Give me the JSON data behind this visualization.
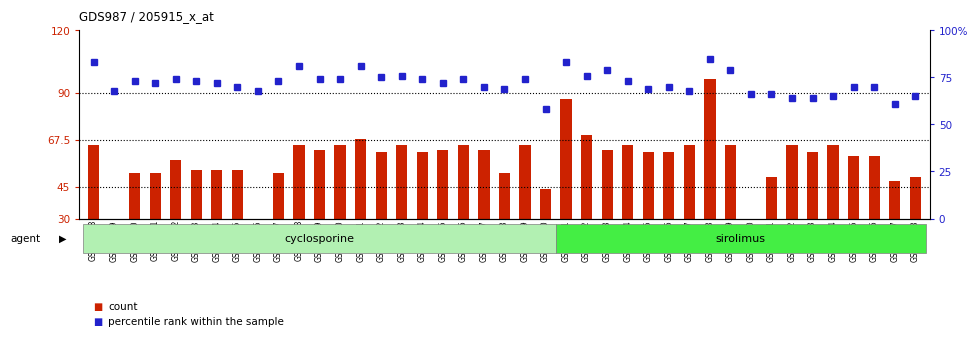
{
  "title": "GDS987 / 205915_x_at",
  "samples": [
    "GSM30418",
    "GSM30419",
    "GSM30420",
    "GSM30421",
    "GSM30422",
    "GSM30423",
    "GSM30424",
    "GSM30425",
    "GSM30426",
    "GSM30427",
    "GSM30428",
    "GSM30429",
    "GSM30430",
    "GSM30431",
    "GSM30432",
    "GSM30433",
    "GSM30434",
    "GSM30435",
    "GSM30436",
    "GSM30437",
    "GSM30438",
    "GSM30439",
    "GSM30440",
    "GSM30441",
    "GSM30442",
    "GSM30443",
    "GSM30444",
    "GSM30445",
    "GSM30446",
    "GSM30447",
    "GSM30448",
    "GSM30449",
    "GSM30450",
    "GSM30451",
    "GSM30452",
    "GSM30453",
    "GSM30454",
    "GSM30455",
    "GSM30456",
    "GSM30457",
    "GSM30458"
  ],
  "counts": [
    65,
    30,
    52,
    52,
    58,
    53,
    53,
    53,
    30,
    52,
    65,
    63,
    65,
    68,
    62,
    65,
    62,
    63,
    65,
    63,
    52,
    65,
    44,
    87,
    70,
    63,
    65,
    62,
    62,
    65,
    97,
    65,
    30,
    50,
    65,
    62,
    65,
    60,
    60,
    48,
    50
  ],
  "percentile": [
    83,
    68,
    73,
    72,
    74,
    73,
    72,
    70,
    68,
    73,
    81,
    74,
    74,
    81,
    75,
    76,
    74,
    72,
    74,
    70,
    69,
    74,
    58,
    83,
    76,
    79,
    73,
    69,
    70,
    68,
    85,
    79,
    66,
    66,
    64,
    64,
    65,
    70,
    70,
    61,
    65
  ],
  "cyclosporine_count": 23,
  "bar_color": "#cc2200",
  "dot_color": "#2222cc",
  "ylim_left": [
    30,
    120
  ],
  "ylim_right": [
    0,
    100
  ],
  "yticks_left": [
    30,
    45,
    67.5,
    90,
    120
  ],
  "ytick_labels_left": [
    "30",
    "45",
    "67.5",
    "90",
    "120"
  ],
  "yticks_right": [
    0,
    25,
    50,
    75,
    100
  ],
  "ytick_labels_right": [
    "0",
    "25",
    "50",
    "75",
    "100%"
  ],
  "hlines": [
    45,
    67.5,
    90
  ],
  "cyclosporine_color": "#b2f0b2",
  "sirolimus_color": "#44ee44",
  "bg_color": "#ffffff"
}
